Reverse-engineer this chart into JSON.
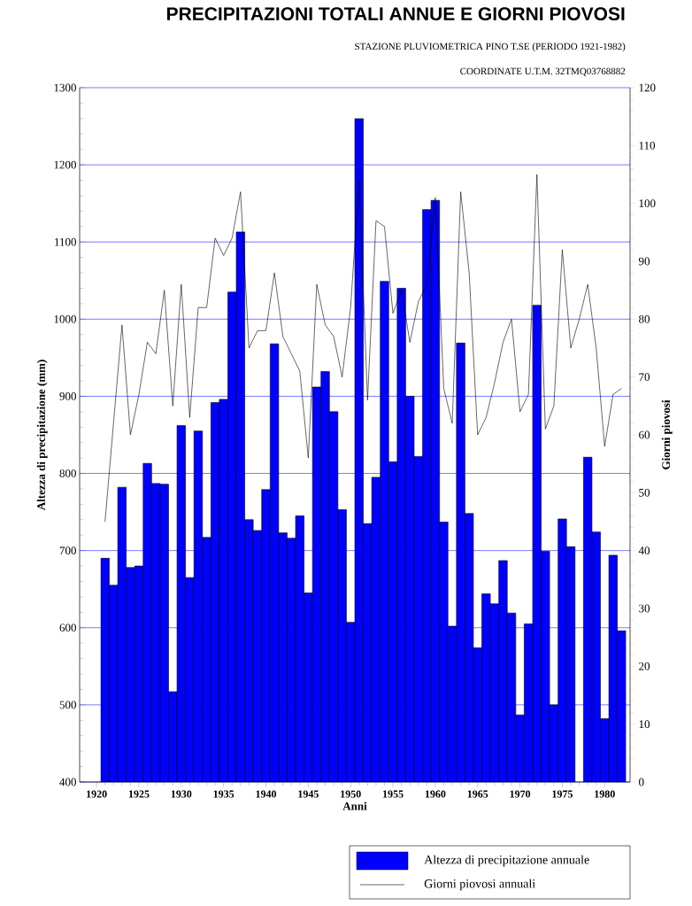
{
  "chart_data": {
    "type": "bar",
    "title": "PRECIPITAZIONI TOTALI ANNUE E GIORNI PIOVOSI",
    "subtitle": "STAZIONE PLUVIOMETRICA PINO T.SE  (PERIODO 1921-1982)",
    "annotations": [
      "COORDINATE U.T.M. 32TMQ03768882"
    ],
    "xlabel": "Anni",
    "ylabel": "Altezza di precipitazione (mm)",
    "y2label": "Giorni piovosi",
    "x": [
      1921,
      1922,
      1923,
      1924,
      1925,
      1926,
      1927,
      1928,
      1929,
      1930,
      1931,
      1932,
      1933,
      1934,
      1935,
      1936,
      1937,
      1938,
      1939,
      1940,
      1941,
      1942,
      1943,
      1944,
      1945,
      1946,
      1947,
      1948,
      1949,
      1950,
      1951,
      1952,
      1953,
      1954,
      1955,
      1956,
      1957,
      1958,
      1959,
      1960,
      1961,
      1962,
      1963,
      1964,
      1965,
      1966,
      1967,
      1968,
      1969,
      1970,
      1971,
      1972,
      1973,
      1974,
      1975,
      1976,
      1977,
      1978,
      1979,
      1980,
      1981,
      1982
    ],
    "series": [
      {
        "name": "Altezza di precipitazione annuale",
        "color": "#0000ff",
        "values": [
          690,
          655,
          782,
          678,
          680,
          813,
          787,
          786,
          517,
          862,
          665,
          855,
          717,
          892,
          896,
          1035,
          1113,
          740,
          726,
          779,
          968,
          723,
          716,
          745,
          645,
          912,
          932,
          880,
          753,
          607,
          1260,
          735,
          795,
          1049,
          815,
          1040,
          900,
          822,
          1142,
          1154,
          737,
          602,
          969,
          748,
          574,
          644,
          631,
          687,
          619,
          487,
          605,
          1018,
          699,
          500,
          741,
          705,
          null,
          821,
          724,
          482,
          694,
          596
        ]
      },
      {
        "name": "Giorni piovosi annuali",
        "type": "line",
        "axis": "y2",
        "color": "#000000",
        "values": [
          45,
          62,
          79,
          60,
          67,
          76,
          74,
          85,
          65,
          86,
          63,
          82,
          82,
          94,
          91,
          94,
          102,
          75,
          78,
          78,
          88,
          77,
          74,
          71,
          56,
          86,
          79,
          77,
          70,
          82,
          104,
          66,
          97,
          96,
          81,
          85,
          76,
          83,
          86,
          101,
          68,
          62,
          102,
          88,
          60,
          63,
          69,
          76,
          80,
          64,
          67,
          105,
          61,
          65,
          92,
          75,
          80,
          86,
          75,
          58,
          67,
          68
        ]
      }
    ],
    "xlim": [
      1918,
      1983
    ],
    "xticks": [
      1920,
      1925,
      1930,
      1935,
      1940,
      1945,
      1950,
      1955,
      1960,
      1965,
      1970,
      1975,
      1980
    ],
    "ylim": [
      400,
      1300
    ],
    "yticks": [
      400,
      500,
      600,
      700,
      800,
      900,
      1000,
      1100,
      1200,
      1300
    ],
    "y2lim": [
      0,
      120
    ],
    "y2ticks": [
      0,
      10,
      20,
      30,
      40,
      50,
      60,
      70,
      80,
      90,
      100,
      110,
      120
    ],
    "grid": "y",
    "legend": "bottom"
  }
}
